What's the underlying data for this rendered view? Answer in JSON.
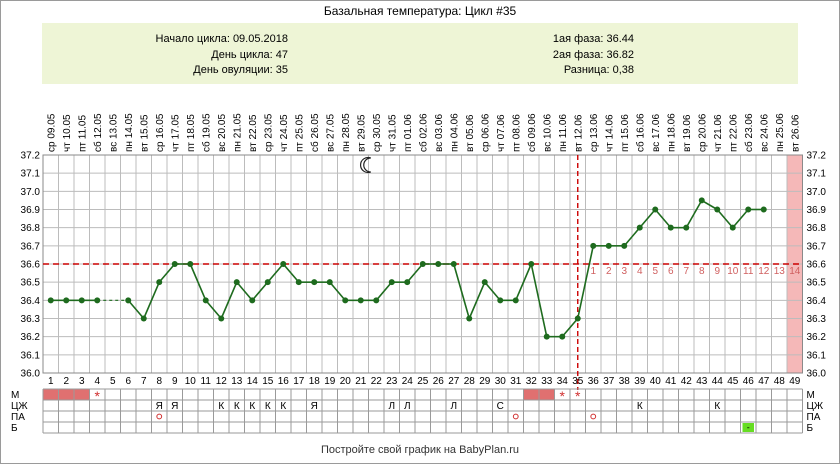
{
  "title": "Базальная температура: Цикл #35",
  "info": {
    "left": [
      {
        "label": "Начало цикла:",
        "value": "09.05.2018"
      },
      {
        "label": "День цикла:",
        "value": "47"
      },
      {
        "label": "День овуляции:",
        "value": "35"
      }
    ],
    "right": [
      {
        "label": "1ая фаза:",
        "value": "36.44"
      },
      {
        "label": "2ая фаза:",
        "value": "36.82"
      },
      {
        "label": "Разница:",
        "value": "0,38"
      }
    ]
  },
  "chart_data": {
    "type": "line",
    "title": "Базальная температура: Цикл #35",
    "ylim": [
      36.0,
      37.2
    ],
    "y_ticks": [
      "36.0",
      "36.1",
      "36.2",
      "36.3",
      "36.4",
      "36.5",
      "36.6",
      "36.7",
      "36.8",
      "36.9",
      "37.0",
      "37.1",
      "37.2"
    ],
    "grid": true,
    "cycle_days": [
      1,
      2,
      3,
      4,
      5,
      6,
      7,
      8,
      9,
      10,
      11,
      12,
      13,
      14,
      15,
      16,
      17,
      18,
      19,
      20,
      21,
      22,
      23,
      24,
      25,
      26,
      27,
      28,
      29,
      30,
      31,
      32,
      33,
      34,
      35,
      36,
      37,
      38,
      39,
      40,
      41,
      42,
      43,
      44,
      45,
      46,
      47,
      48,
      49
    ],
    "weekdays": [
      "ср",
      "чт",
      "пт",
      "сб",
      "вс",
      "пн",
      "вт",
      "ср",
      "чт",
      "пт",
      "сб",
      "вс",
      "пн",
      "вт",
      "ср",
      "чт",
      "пт",
      "сб",
      "вс",
      "пн",
      "вт",
      "ср",
      "чт",
      "пт",
      "сб",
      "вс",
      "пн",
      "вт",
      "ср",
      "чт",
      "пт",
      "сб",
      "вс",
      "пн",
      "вт",
      "ср",
      "чт",
      "пт",
      "сб",
      "вс",
      "пн",
      "вт",
      "ср",
      "чт",
      "пт",
      "сб",
      "вс",
      "пн",
      "вт"
    ],
    "dates": [
      "09.05",
      "10.05",
      "11.05",
      "12.05",
      "13.05",
      "14.05",
      "15.05",
      "16.05",
      "17.05",
      "18.05",
      "19.05",
      "20.05",
      "21.05",
      "22.05",
      "23.05",
      "24.05",
      "25.05",
      "26.05",
      "27.05",
      "28.05",
      "29.05",
      "30.05",
      "31.05",
      "01.06",
      "02.06",
      "03.06",
      "04.06",
      "05.06",
      "06.06",
      "07.06",
      "08.06",
      "09.06",
      "10.06",
      "11.06",
      "12.06",
      "13.06",
      "14.06",
      "15.06",
      "16.06",
      "17.06",
      "18.06",
      "19.06",
      "20.06",
      "21.06",
      "22.06",
      "23.06",
      "24.06",
      "25.06",
      "26.06"
    ],
    "temperatures": [
      36.4,
      36.4,
      36.4,
      36.4,
      null,
      36.4,
      36.3,
      36.5,
      36.6,
      36.6,
      36.4,
      36.3,
      36.5,
      36.4,
      36.5,
      36.6,
      36.5,
      36.5,
      36.5,
      36.4,
      36.4,
      36.4,
      36.5,
      36.5,
      36.6,
      36.6,
      36.6,
      36.3,
      36.5,
      36.4,
      36.4,
      36.6,
      36.2,
      36.2,
      36.3,
      36.7,
      36.7,
      36.7,
      36.8,
      36.9,
      36.8,
      36.8,
      36.95,
      36.9,
      36.8,
      36.9,
      36.9,
      null,
      null
    ],
    "gap_after_day": 4,
    "coverline": 36.6,
    "ovulation_day": 35,
    "moon_day": 21,
    "luteal_labels": [
      "1",
      "2",
      "3",
      "4",
      "5",
      "6",
      "7",
      "8",
      "9",
      "10",
      "11",
      "12",
      "13",
      "14"
    ],
    "luteal_start_day": 35,
    "highlight_days": [
      49
    ],
    "series_color": "#1e6b1e",
    "coverline_color": "#cc0000",
    "luteal_color": "#d06060",
    "highlight_color": "#f5b8b8"
  },
  "bottom_table": {
    "row_labels": [
      "М",
      "ЦЖ",
      "ПА",
      "Б"
    ],
    "menstruation_days": [
      1,
      2,
      3,
      32,
      33
    ],
    "star_days": [
      4,
      34,
      35
    ],
    "cj_marks": [
      {
        "day": 8,
        "text": "Я"
      },
      {
        "day": 9,
        "text": "Я"
      },
      {
        "day": 12,
        "text": "К"
      },
      {
        "day": 13,
        "text": "К"
      },
      {
        "day": 14,
        "text": "К"
      },
      {
        "day": 15,
        "text": "К"
      },
      {
        "day": 16,
        "text": "К"
      },
      {
        "day": 18,
        "text": "Я"
      },
      {
        "day": 23,
        "text": "Л"
      },
      {
        "day": 24,
        "text": "Л"
      },
      {
        "day": 27,
        "text": "Л"
      },
      {
        "day": 30,
        "text": "С"
      },
      {
        "day": 39,
        "text": "К"
      },
      {
        "day": 44,
        "text": "К"
      }
    ],
    "pa_days": [
      8,
      31,
      36
    ],
    "b_days": [
      46
    ],
    "b_mark": "-",
    "menstruation_color": "#e07070",
    "pa_color": "#d03030",
    "b_color": "#66dd22"
  },
  "footer": "Постройте свой график на BabyPlan.ru"
}
